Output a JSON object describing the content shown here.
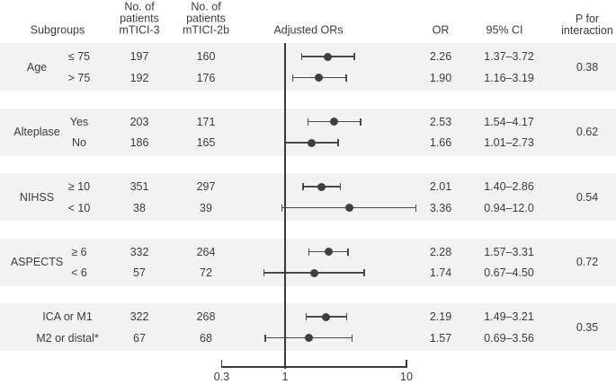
{
  "figure": {
    "headers": {
      "subgroups": "Subgroups",
      "n_mtici3": "No. of\npatients\nmTICI-3",
      "n_mtici2b": "No. of\npatients\nmTICI-2b",
      "adjusted_ors": "Adjusted ORs",
      "or": "OR",
      "ci": "95% CI",
      "p_interaction": "P for\ninteraction"
    },
    "colors": {
      "band": "#f2f2f2",
      "ci_line": "#4a4a4a",
      "marker": "#3f3f3f",
      "axis": "#3a3a3a",
      "text": "#3c3c3c"
    }
  },
  "chart_data": {
    "type": "scatter",
    "variant": "forest-plot",
    "title": "",
    "xlabel": "",
    "ylabel": "",
    "x_scale": "log10",
    "x_axis": {
      "tick_values": [
        0.3,
        1,
        10
      ],
      "tick_labels": [
        "0.3",
        "1",
        "10"
      ],
      "reference_line": 1,
      "xlim": [
        0.3,
        10
      ]
    },
    "legend": null,
    "grid": false,
    "groups": [
      {
        "label": "Age",
        "p_interaction": "0.38",
        "rows": [
          {
            "subgroup": "≤ 75",
            "n_mtici3": "197",
            "n_mtici2b": "160",
            "or": 2.26,
            "ci_low": 1.37,
            "ci_high": 3.72,
            "or_text": "2.26",
            "ci_text": "1.37–3.72"
          },
          {
            "subgroup": "> 75",
            "n_mtici3": "192",
            "n_mtici2b": "176",
            "or": 1.9,
            "ci_low": 1.16,
            "ci_high": 3.19,
            "or_text": "1.90",
            "ci_text": "1.16–3.19"
          }
        ]
      },
      {
        "label": "Alteplase",
        "p_interaction": "0.62",
        "rows": [
          {
            "subgroup": "Yes",
            "n_mtici3": "203",
            "n_mtici2b": "171",
            "or": 2.53,
            "ci_low": 1.54,
            "ci_high": 4.17,
            "or_text": "2.53",
            "ci_text": "1.54–4.17"
          },
          {
            "subgroup": "No",
            "n_mtici3": "186",
            "n_mtici2b": "165",
            "or": 1.66,
            "ci_low": 1.01,
            "ci_high": 2.73,
            "or_text": "1.66",
            "ci_text": "1.01–2.73"
          }
        ]
      },
      {
        "label": "NIHSS",
        "p_interaction": "0.54",
        "rows": [
          {
            "subgroup": "≥ 10",
            "n_mtici3": "351",
            "n_mtici2b": "297",
            "or": 2.01,
            "ci_low": 1.4,
            "ci_high": 2.86,
            "or_text": "2.01",
            "ci_text": "1.40–2.86"
          },
          {
            "subgroup": "< 10",
            "n_mtici3": "38",
            "n_mtici2b": "39",
            "or": 3.36,
            "ci_low": 0.94,
            "ci_high": 12.0,
            "or_text": "3.36",
            "ci_text": "0.94–12.0"
          }
        ]
      },
      {
        "label": "ASPECTS",
        "p_interaction": "0.72",
        "rows": [
          {
            "subgroup": "≥ 6",
            "n_mtici3": "332",
            "n_mtici2b": "264",
            "or": 2.28,
            "ci_low": 1.57,
            "ci_high": 3.31,
            "or_text": "2.28",
            "ci_text": "1.57–3.31"
          },
          {
            "subgroup": "< 6",
            "n_mtici3": "57",
            "n_mtici2b": "72",
            "or": 1.74,
            "ci_low": 0.67,
            "ci_high": 4.5,
            "or_text": "1.74",
            "ci_text": "0.67–4.50"
          }
        ]
      },
      {
        "label": "",
        "p_interaction": "0.35",
        "rows": [
          {
            "subgroup": "ICA or M1",
            "n_mtici3": "322",
            "n_mtici2b": "268",
            "or": 2.19,
            "ci_low": 1.49,
            "ci_high": 3.21,
            "or_text": "2.19",
            "ci_text": "1.49–3.21"
          },
          {
            "subgroup": "M2 or distal*",
            "n_mtici3": "67",
            "n_mtici2b": "68",
            "or": 1.57,
            "ci_low": 0.69,
            "ci_high": 3.56,
            "or_text": "1.57",
            "ci_text": "0.69–3.56"
          }
        ]
      }
    ]
  }
}
